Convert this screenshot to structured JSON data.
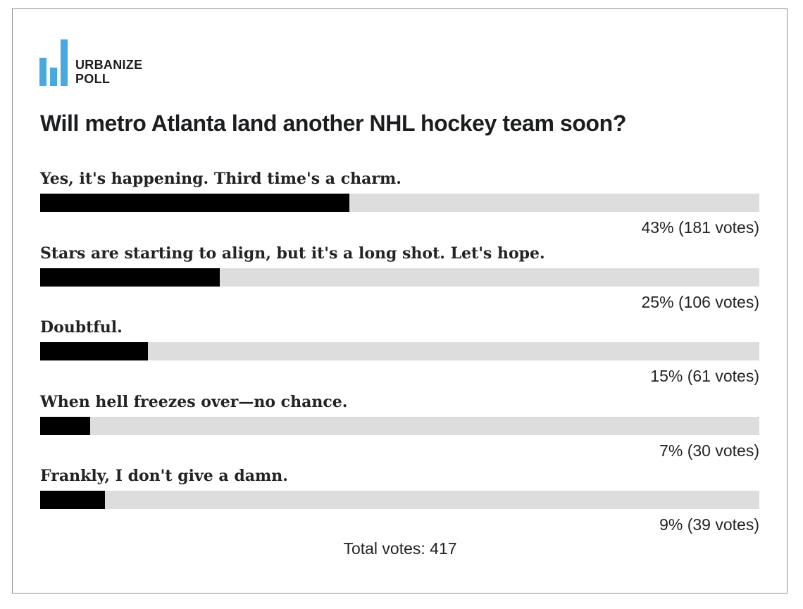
{
  "brand": {
    "line1": "URBANIZE",
    "line2": "POLL",
    "accent_color": "#4aa8e0"
  },
  "poll": {
    "question": "Will metro Atlanta land another NHL hockey team soon?",
    "total_label": "Total votes: 417"
  },
  "chart_data": {
    "type": "bar",
    "orientation": "horizontal",
    "title": "Will metro Atlanta land another NHL hockey team soon?",
    "categories": [
      "Yes, it's happening. Third time's a charm.",
      "Stars are starting to align, but it's a long shot. Let's hope.",
      "Doubtful.",
      "When hell freezes over—no chance.",
      "Frankly, I don't give a damn."
    ],
    "percents": [
      43,
      25,
      15,
      7,
      9
    ],
    "votes": [
      181,
      106,
      61,
      30,
      39
    ],
    "result_labels": [
      "43% (181 votes)",
      "25% (106 votes)",
      "15% (61 votes)",
      "7% (30 votes)",
      "9% (39 votes)"
    ],
    "total_votes": 417,
    "xlim": [
      0,
      100
    ],
    "bar_color": "#000000",
    "track_color": "#dddddd"
  }
}
